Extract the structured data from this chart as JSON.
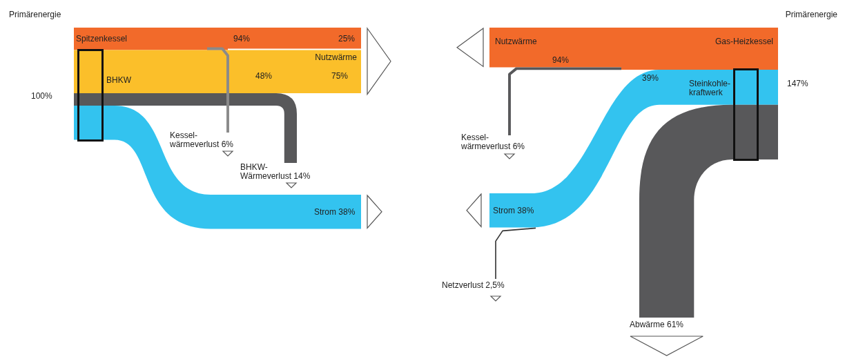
{
  "chart_data": [
    {
      "type": "other",
      "title": "Primärenergie",
      "colors": [
        "#f26a2a",
        "#f26a2a",
        "#fbbf2a",
        "#fbbf2a",
        "#111111",
        "#8a8a8a",
        "#58585a",
        "#33c3ef"
      ],
      "categories": [
        null,
        null,
        null,
        null,
        null,
        "Kessel-\nwärmeverlust",
        "BHKW-\nWärmeverlust",
        "Strom"
      ],
      "values": [
        94,
        25,
        48,
        75,
        100,
        6,
        14,
        38
      ],
      "value_labels": [
        "94%",
        "25%",
        "48%",
        "75%",
        "100%",
        "6%",
        "14%",
        "38%"
      ],
      "annotations": [
        "Spitzenkessel",
        "Nutzwärme",
        "BHKW"
      ]
    },
    {
      "type": "other",
      "title": "Primärenergie",
      "colors": [
        "#f26a2a",
        "#33c3ef",
        "#f26a2a",
        "#58585a",
        "#33c3ef",
        "#333333",
        "#58585a"
      ],
      "categories": [
        null,
        null,
        null,
        "Kessel-\nwärmeverlust",
        "Strom",
        "Netzverlust",
        "Abwärme"
      ],
      "values": [
        94,
        39,
        147,
        6,
        38,
        2.5,
        61
      ],
      "value_labels": [
        "94%",
        "39%",
        "147%",
        "6%",
        "38%",
        "2,5%",
        "61%"
      ],
      "annotations": [
        "Nutzwärme",
        "Gas-Heizkessel",
        "Steinkohle-\nkraftwerk"
      ]
    }
  ]
}
